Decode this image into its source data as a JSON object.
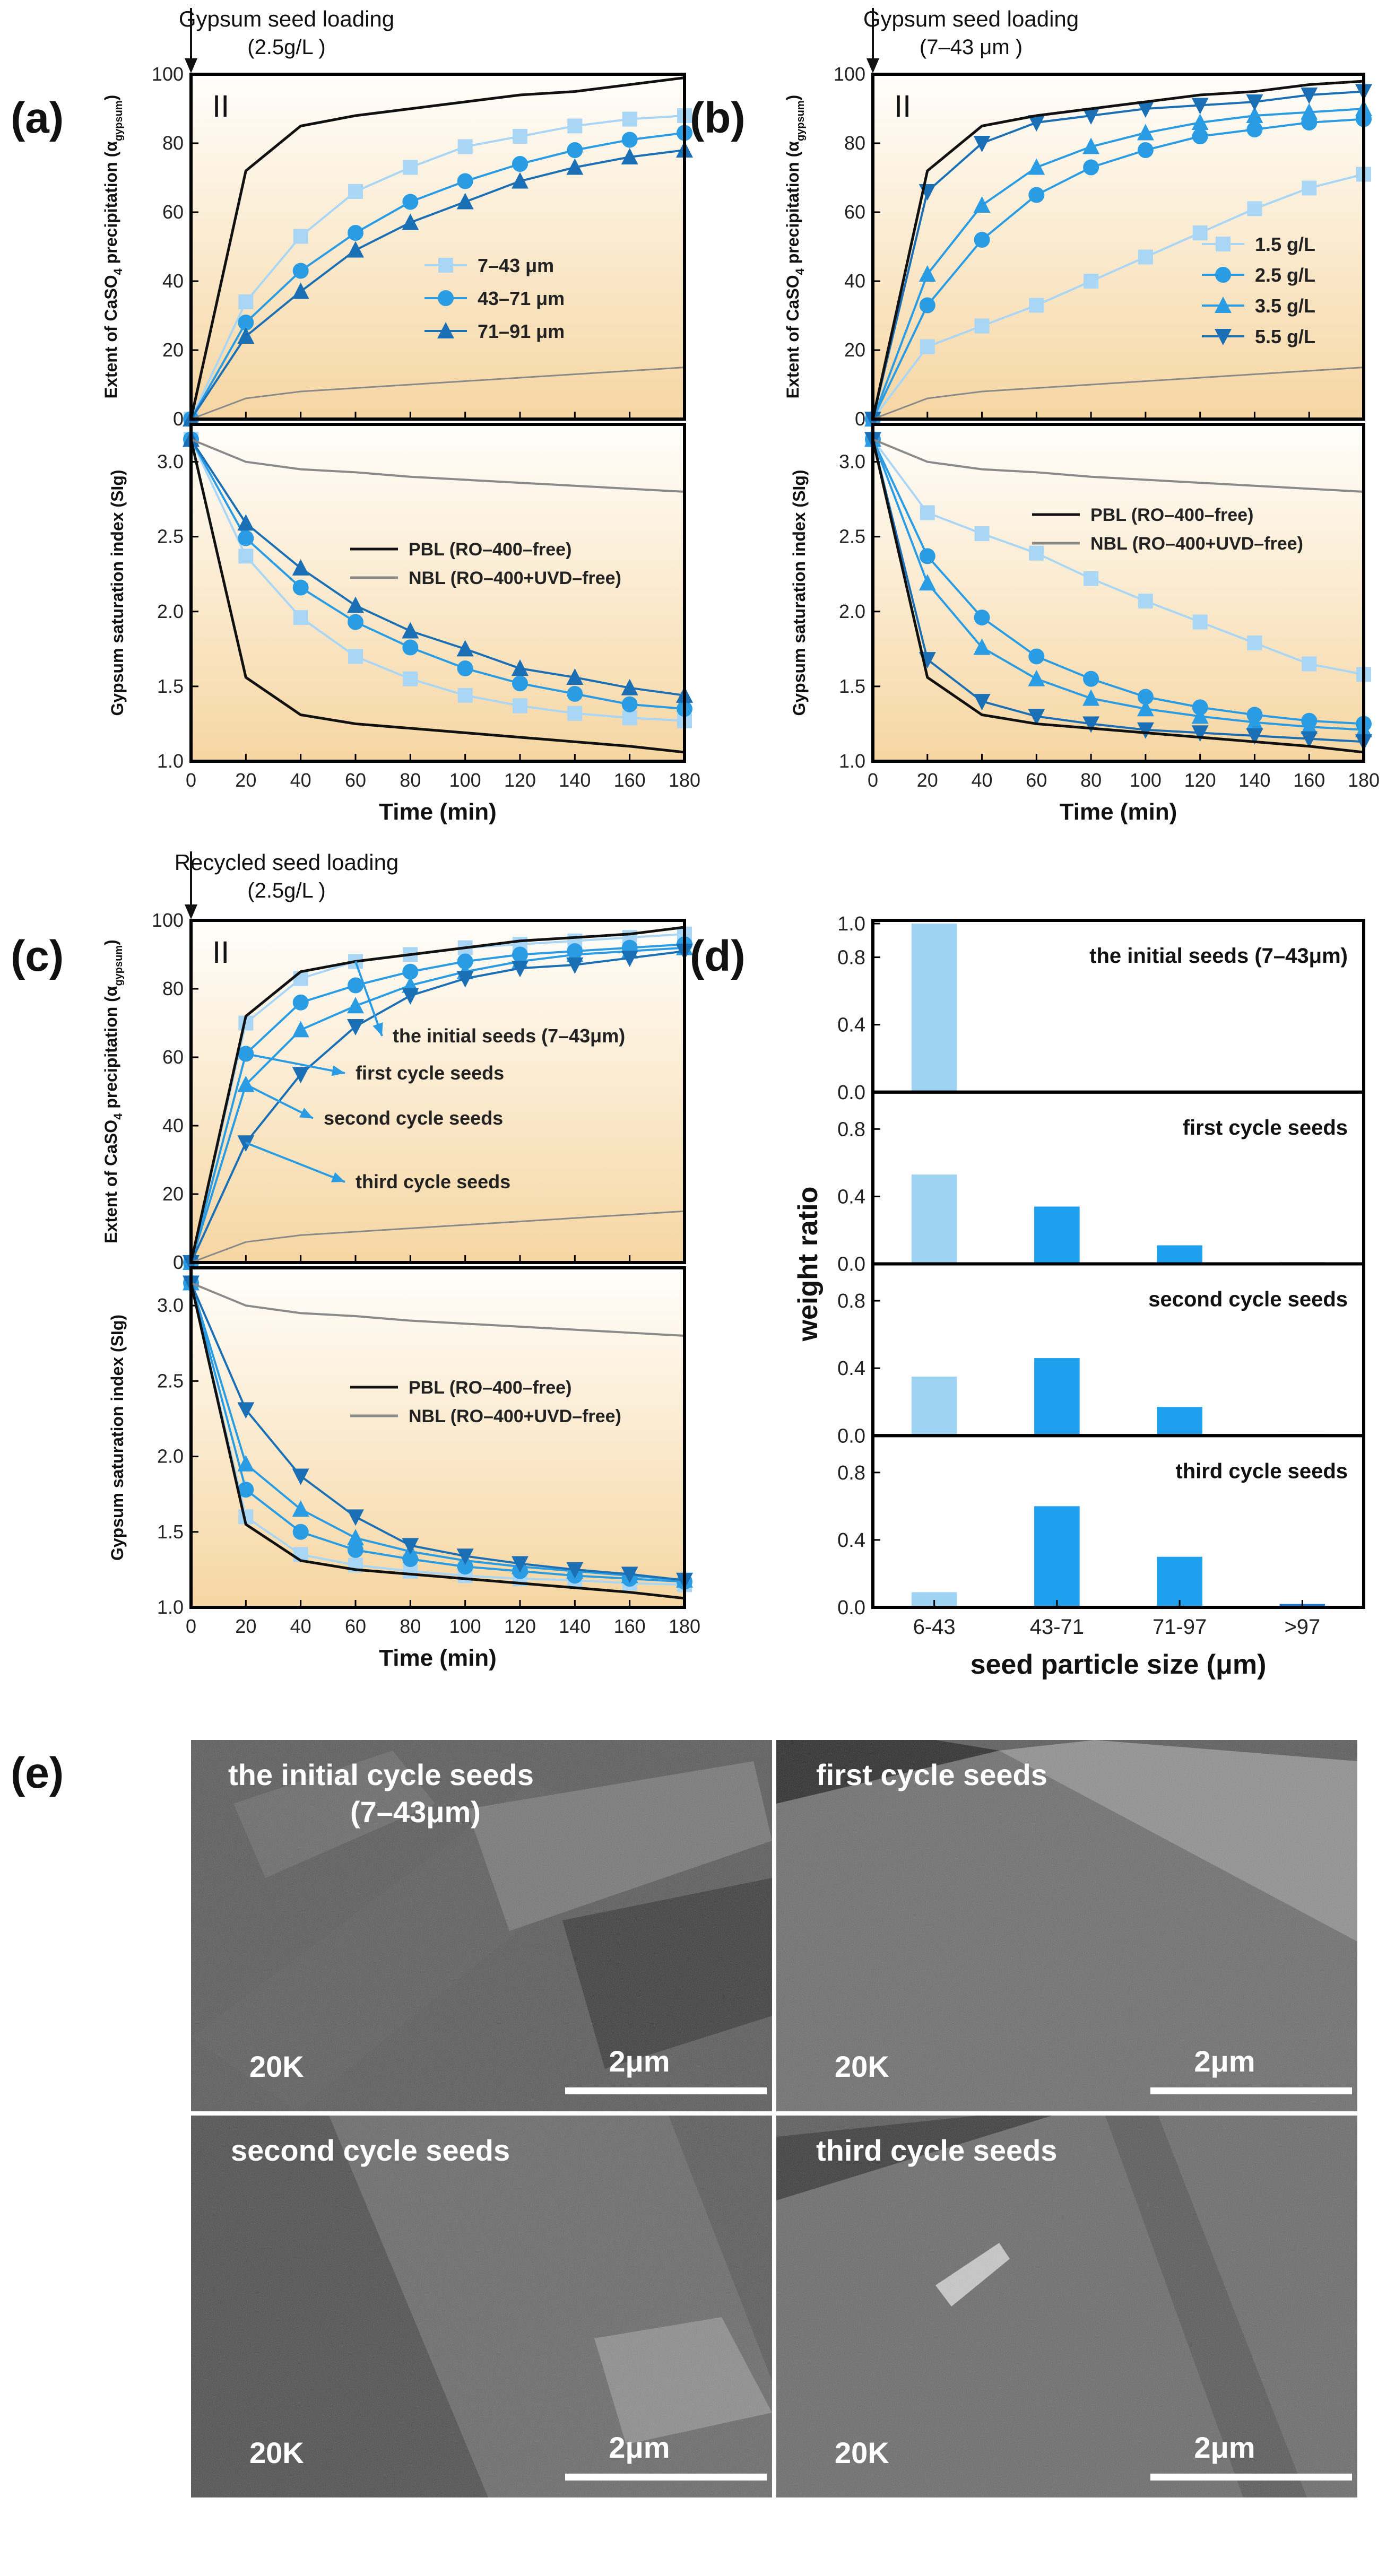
{
  "panel_labels": {
    "a": "(a)",
    "b": "(b)",
    "c": "(c)",
    "d": "(d)",
    "e": "(e)"
  },
  "roman": "II",
  "headers": {
    "a": {
      "line1": "Gypsum seed loading",
      "line2": "(2.5g/L )"
    },
    "b": {
      "line1": "Gypsum seed loading",
      "line2": "(7–43 μm )"
    },
    "c": {
      "line1": "Recycled seed loading",
      "line2": "(2.5g/L )"
    }
  },
  "colors": {
    "black": "#111111",
    "gray": "#8a8a8a",
    "light": "#a9d6f5",
    "mid": "#2a9ce3",
    "dark": "#1b6fb5",
    "bar_light": "#9fd3f3",
    "bar_mid": "#1ea0ee",
    "bar_dark": "#1478d8",
    "bg_top": "#fffefb",
    "bg_bottom": "#f7d9a8"
  },
  "chart_data": [
    {
      "panel": "a",
      "type": "line",
      "x": [
        0,
        20,
        40,
        60,
        80,
        100,
        120,
        140,
        160,
        180
      ],
      "xlim": [
        0,
        180
      ],
      "xlabel": "Time (min)",
      "xticks": [
        "0",
        "20",
        "40",
        "60",
        "80",
        "100",
        "120",
        "140",
        "160",
        "180"
      ],
      "top": {
        "ylabel": "Extent of CaSO",
        "ylabel_sub": "4",
        "ylabel_tail": " precipitation (α",
        "ylabel_greek_sub": "gypsum",
        "ylabel_close": ")",
        "ylim": [
          0,
          100
        ],
        "yticks": [
          "0",
          "20",
          "40",
          "60",
          "80",
          "100"
        ],
        "series": [
          {
            "name": "7–43 μm",
            "color": "light",
            "marker": "square",
            "values": [
              0,
              34,
              53,
              66,
              73,
              79,
              82,
              85,
              87,
              88
            ]
          },
          {
            "name": "43–71 μm",
            "color": "mid",
            "marker": "circle",
            "values": [
              0,
              28,
              43,
              54,
              63,
              69,
              74,
              78,
              81,
              83
            ]
          },
          {
            "name": "71–91 μm",
            "color": "dark",
            "marker": "triangle",
            "values": [
              0,
              24,
              37,
              49,
              57,
              63,
              69,
              73,
              76,
              78
            ]
          },
          {
            "name": "PBL",
            "color": "black",
            "marker": "none",
            "width": 5,
            "values": [
              0,
              72,
              85,
              88,
              90,
              92,
              94,
              95,
              97,
              99
            ]
          },
          {
            "name": "NBL",
            "color": "gray",
            "marker": "none",
            "width": 3,
            "values": [
              0,
              6,
              8,
              9,
              10,
              11,
              12,
              13,
              14,
              15
            ]
          }
        ]
      },
      "bottom": {
        "ylabel": "Gypsum saturation index (SIg)",
        "ylim": [
          1.0,
          3.25
        ],
        "yticks": [
          "1.0",
          "1.5",
          "2.0",
          "2.5",
          "3.0"
        ],
        "series": [
          {
            "name": "7–43 μm",
            "color": "light",
            "marker": "square",
            "values": [
              3.15,
              2.37,
              1.96,
              1.7,
              1.55,
              1.44,
              1.37,
              1.32,
              1.29,
              1.27
            ]
          },
          {
            "name": "43–71 μm",
            "color": "mid",
            "marker": "circle",
            "values": [
              3.15,
              2.49,
              2.16,
              1.93,
              1.76,
              1.62,
              1.52,
              1.45,
              1.38,
              1.35
            ]
          },
          {
            "name": "71–91 μm",
            "color": "dark",
            "marker": "triangle",
            "values": [
              3.15,
              2.59,
              2.29,
              2.04,
              1.87,
              1.75,
              1.62,
              1.56,
              1.49,
              1.44
            ]
          },
          {
            "name": "PBL (RO–400–free)",
            "color": "black",
            "marker": "none",
            "width": 5,
            "values": [
              3.15,
              1.56,
              1.31,
              1.25,
              1.22,
              1.19,
              1.16,
              1.13,
              1.1,
              1.06
            ]
          },
          {
            "name": "NBL (RO–400+UVD–free)",
            "color": "gray",
            "marker": "none",
            "width": 4,
            "values": [
              3.15,
              3.0,
              2.95,
              2.93,
              2.9,
              2.88,
              2.86,
              2.84,
              2.82,
              2.8
            ]
          }
        ]
      },
      "legend_top": [
        "7–43 μm",
        "43–71 μm",
        "71–91 μm"
      ],
      "legend_bottom": [
        "PBL (RO–400–free)",
        "NBL (RO–400+UVD–free)"
      ]
    },
    {
      "panel": "b",
      "type": "line",
      "x": [
        0,
        20,
        40,
        60,
        80,
        100,
        120,
        140,
        160,
        180
      ],
      "xlim": [
        0,
        180
      ],
      "xlabel": "Time (min)",
      "xticks": [
        "0",
        "20",
        "40",
        "60",
        "80",
        "100",
        "120",
        "140",
        "160",
        "180"
      ],
      "top": {
        "ylabel": "Extent of CaSO",
        "ylabel_sub": "4",
        "ylabel_tail": " precipitation (α",
        "ylabel_greek_sub": "gypsum",
        "ylabel_close": ")",
        "ylim": [
          0,
          100
        ],
        "yticks": [
          "0",
          "20",
          "40",
          "60",
          "80",
          "100"
        ],
        "series": [
          {
            "name": "1.5 g/L",
            "color": "light",
            "marker": "square",
            "values": [
              0,
              21,
              27,
              33,
              40,
              47,
              54,
              61,
              67,
              71
            ]
          },
          {
            "name": "2.5 g/L",
            "color": "mid",
            "marker": "circle",
            "values": [
              0,
              33,
              52,
              65,
              73,
              78,
              82,
              84,
              86,
              87
            ]
          },
          {
            "name": "3.5 g/L",
            "color": "mid",
            "marker": "triangle",
            "values": [
              0,
              42,
              62,
              73,
              79,
              83,
              86,
              88,
              89,
              90
            ]
          },
          {
            "name": "5.5 g/L",
            "color": "dark",
            "marker": "triangle-down",
            "values": [
              0,
              66,
              80,
              86,
              88,
              90,
              91,
              92,
              94,
              95
            ]
          },
          {
            "name": "PBL",
            "color": "black",
            "marker": "none",
            "width": 5,
            "values": [
              0,
              72,
              85,
              88,
              90,
              92,
              94,
              95,
              97,
              98
            ]
          },
          {
            "name": "NBL",
            "color": "gray",
            "marker": "none",
            "width": 3,
            "values": [
              0,
              6,
              8,
              9,
              10,
              11,
              12,
              13,
              14,
              15
            ]
          }
        ]
      },
      "bottom": {
        "ylabel": "Gypsum saturation index (SIg)",
        "ylim": [
          1.0,
          3.25
        ],
        "yticks": [
          "1.0",
          "1.5",
          "2.0",
          "2.5",
          "3.0"
        ],
        "series": [
          {
            "name": "1.5 g/L",
            "color": "light",
            "marker": "square",
            "values": [
              3.15,
              2.66,
              2.52,
              2.39,
              2.22,
              2.07,
              1.93,
              1.79,
              1.65,
              1.58
            ]
          },
          {
            "name": "2.5 g/L",
            "color": "mid",
            "marker": "circle",
            "values": [
              3.15,
              2.37,
              1.96,
              1.7,
              1.55,
              1.43,
              1.36,
              1.31,
              1.27,
              1.25
            ]
          },
          {
            "name": "3.5 g/L",
            "color": "mid",
            "marker": "triangle",
            "values": [
              3.15,
              2.19,
              1.76,
              1.55,
              1.42,
              1.35,
              1.3,
              1.26,
              1.23,
              1.21
            ]
          },
          {
            "name": "5.5 g/L",
            "color": "dark",
            "marker": "triangle-down",
            "values": [
              3.15,
              1.68,
              1.4,
              1.3,
              1.25,
              1.21,
              1.19,
              1.17,
              1.15,
              1.13
            ]
          },
          {
            "name": "PBL (RO–400–free)",
            "color": "black",
            "marker": "none",
            "width": 5,
            "values": [
              3.15,
              1.56,
              1.31,
              1.25,
              1.22,
              1.19,
              1.16,
              1.13,
              1.1,
              1.06
            ]
          },
          {
            "name": "NBL (RO–400+UVD–free)",
            "color": "gray",
            "marker": "none",
            "width": 4,
            "values": [
              3.15,
              3.0,
              2.95,
              2.93,
              2.9,
              2.88,
              2.86,
              2.84,
              2.82,
              2.8
            ]
          }
        ]
      },
      "legend_top": [
        "1.5 g/L",
        "2.5 g/L",
        "3.5 g/L",
        "5.5 g/L"
      ],
      "legend_bottom": [
        "PBL (RO–400–free)",
        "NBL (RO–400+UVD–free)"
      ]
    },
    {
      "panel": "c",
      "type": "line",
      "x": [
        0,
        20,
        40,
        60,
        80,
        100,
        120,
        140,
        160,
        180
      ],
      "xlim": [
        0,
        180
      ],
      "xlabel": "Time (min)",
      "xticks": [
        "0",
        "20",
        "40",
        "60",
        "80",
        "100",
        "120",
        "140",
        "160",
        "180"
      ],
      "top": {
        "ylabel": "Extent of CaSO",
        "ylabel_sub": "4",
        "ylabel_tail": " precipitation (α",
        "ylabel_greek_sub": "gypsum",
        "ylabel_close": ")",
        "ylim": [
          0,
          100
        ],
        "yticks": [
          "0",
          "20",
          "40",
          "60",
          "80",
          "100"
        ],
        "series": [
          {
            "name": "the initial seeds (7–43μm)",
            "color": "light",
            "marker": "square",
            "values": [
              0,
              70,
              83,
              88,
              90,
              92,
              93,
              94,
              95,
              96
            ]
          },
          {
            "name": "first cycle seeds",
            "color": "mid",
            "marker": "circle",
            "values": [
              0,
              61,
              76,
              81,
              85,
              88,
              90,
              91,
              92,
              93
            ]
          },
          {
            "name": "second cycle seeds",
            "color": "mid",
            "marker": "triangle",
            "values": [
              0,
              52,
              68,
              75,
              81,
              85,
              88,
              90,
              91,
              92
            ]
          },
          {
            "name": "third cycle seeds",
            "color": "dark",
            "marker": "triangle-down",
            "values": [
              0,
              35,
              55,
              69,
              78,
              83,
              86,
              87,
              89,
              91
            ]
          },
          {
            "name": "PBL",
            "color": "black",
            "marker": "none",
            "width": 5,
            "values": [
              0,
              72,
              85,
              88,
              90,
              92,
              94,
              95,
              96,
              98
            ]
          },
          {
            "name": "NBL",
            "color": "gray",
            "marker": "none",
            "width": 3,
            "values": [
              0,
              6,
              8,
              9,
              10,
              11,
              12,
              13,
              14,
              15
            ]
          }
        ]
      },
      "bottom": {
        "ylabel": "Gypsum saturation index (SIg)",
        "ylim": [
          1.0,
          3.25
        ],
        "yticks": [
          "1.0",
          "1.5",
          "2.0",
          "2.5",
          "3.0"
        ],
        "series": [
          {
            "name": "the initial seeds (7–43μm)",
            "color": "light",
            "marker": "square",
            "values": [
              3.15,
              1.6,
              1.35,
              1.28,
              1.24,
              1.21,
              1.19,
              1.18,
              1.16,
              1.15
            ]
          },
          {
            "name": "first cycle seeds",
            "color": "mid",
            "marker": "circle",
            "values": [
              3.15,
              1.78,
              1.5,
              1.38,
              1.32,
              1.27,
              1.24,
              1.21,
              1.19,
              1.17
            ]
          },
          {
            "name": "second cycle seeds",
            "color": "mid",
            "marker": "triangle",
            "values": [
              3.15,
              1.95,
              1.65,
              1.46,
              1.37,
              1.31,
              1.27,
              1.24,
              1.21,
              1.18
            ]
          },
          {
            "name": "third cycle seeds",
            "color": "dark",
            "marker": "triangle-down",
            "values": [
              3.15,
              2.31,
              1.87,
              1.6,
              1.41,
              1.34,
              1.29,
              1.25,
              1.22,
              1.18
            ]
          },
          {
            "name": "PBL (RO–400–free)",
            "color": "black",
            "marker": "none",
            "width": 5,
            "values": [
              3.15,
              1.55,
              1.31,
              1.25,
              1.22,
              1.19,
              1.16,
              1.13,
              1.1,
              1.06
            ]
          },
          {
            "name": "NBL (RO–400+UVD–free)",
            "color": "gray",
            "marker": "none",
            "width": 4,
            "values": [
              3.15,
              3.0,
              2.95,
              2.93,
              2.9,
              2.88,
              2.86,
              2.84,
              2.82,
              2.8
            ]
          }
        ]
      },
      "annotations": [
        "the initial seeds (7–43μm)",
        "first cycle seeds",
        "second cycle seeds",
        "third cycle seeds"
      ],
      "legend_bottom": [
        "PBL (RO–400–free)",
        "NBL (RO–400+UVD–free)"
      ]
    },
    {
      "panel": "d",
      "type": "bar",
      "categories": [
        "6-43",
        "43-71",
        "71-97",
        ">97"
      ],
      "xlabel": "seed particle size (μm)",
      "ylabel": "weight ratio",
      "subplots": [
        {
          "title": "the initial seeds (7–43μm)",
          "ylim": [
            0,
            1.0
          ],
          "yticks": [
            "0.0",
            "0.4",
            "0.8",
            "1.0"
          ],
          "values": [
            1.0,
            0,
            0,
            0
          ]
        },
        {
          "title": "first cycle seeds",
          "ylim": [
            0,
            1.0
          ],
          "yticks": [
            "0.0",
            "0.4",
            "0.8"
          ],
          "values": [
            0.53,
            0.34,
            0.11,
            0.01
          ]
        },
        {
          "title": "second cycle seeds",
          "ylim": [
            0,
            1.0
          ],
          "yticks": [
            "0.0",
            "0.4",
            "0.8"
          ],
          "values": [
            0.35,
            0.46,
            0.17,
            0.01
          ]
        },
        {
          "title": "third cycle seeds",
          "ylim": [
            0,
            1.0
          ],
          "yticks": [
            "0.0",
            "0.4",
            "0.8"
          ],
          "values": [
            0.09,
            0.6,
            0.3,
            0.02
          ]
        }
      ]
    }
  ],
  "sem_images": [
    {
      "title": "the initial cycle seeds",
      "title2": "(7–43μm)",
      "mag": "20K",
      "scale": "2μm"
    },
    {
      "title": "first cycle seeds",
      "title2": "",
      "mag": "20K",
      "scale": "2μm"
    },
    {
      "title": "second cycle seeds",
      "title2": "",
      "mag": "20K",
      "scale": "2μm"
    },
    {
      "title": "third cycle seeds",
      "title2": "",
      "mag": "20K",
      "scale": "2μm"
    }
  ]
}
